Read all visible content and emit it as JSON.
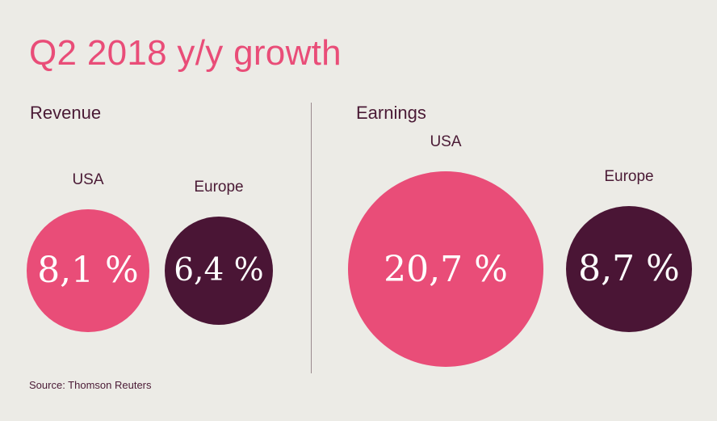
{
  "title": "Q2 2018 y/y growth",
  "source": "Source: Thomson Reuters",
  "colors": {
    "usa": "#e94d78",
    "europe": "#4a1535",
    "title": "#e94d78",
    "text": "#4a1a35",
    "background": "#ecebe6"
  },
  "chart_data": [
    {
      "type": "bubble",
      "title": "Revenue",
      "categories": [
        "USA",
        "Europe"
      ],
      "values": [
        8.1,
        6.4
      ],
      "labels": [
        "8,1 %",
        "6,4 %"
      ],
      "unit": "%"
    },
    {
      "type": "bubble",
      "title": "Earnings",
      "categories": [
        "USA",
        "Europe"
      ],
      "values": [
        20.7,
        8.7
      ],
      "labels": [
        "20,7 %",
        "8,7 %"
      ],
      "unit": "%"
    }
  ]
}
